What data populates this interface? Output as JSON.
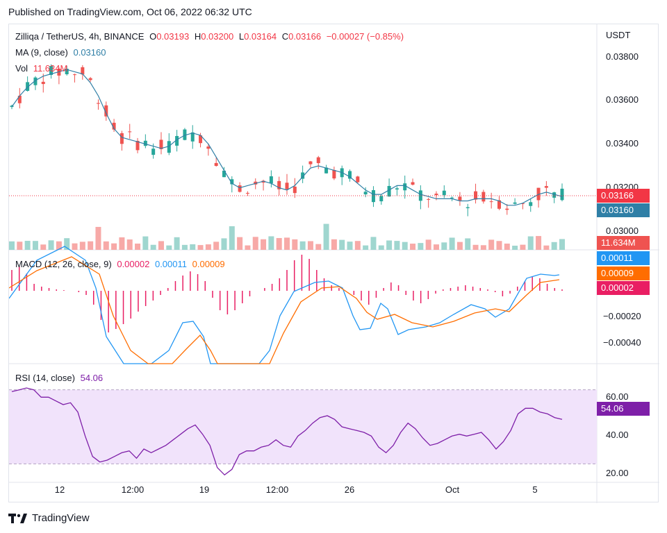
{
  "header": {
    "published": "Published on TradingView.com, Oct 06, 2022 06:32 UTC"
  },
  "legend": {
    "symbol": "Zilliqa / TetherUS, 4h, BINANCE",
    "o_label": "O",
    "o_value": "0.03193",
    "h_label": "H",
    "h_value": "0.03200",
    "l_label": "L",
    "l_value": "0.03164",
    "c_label": "C",
    "c_value": "0.03166",
    "change": "−0.00027 (−0.85%)",
    "ma_label": "MA (9, close)",
    "ma_value": "0.03160",
    "vol_label": "Vol",
    "vol_value": "11.634M",
    "macd_label": "MACD (12, 26, close, 9)",
    "macd_hist": "0.00002",
    "macd_line": "0.00011",
    "macd_signal": "0.00009",
    "rsi_label": "RSI (14, close)",
    "rsi_value": "54.06"
  },
  "price_axis": {
    "currency": "USDT",
    "ticks": [
      "0.03800",
      "0.03600",
      "0.03400",
      "0.03200",
      "0.03000"
    ],
    "tag_close": "0.03166",
    "tag_ma": "0.03160",
    "tag_vol": "11.634M"
  },
  "macd_axis": {
    "ticks": [
      "−0.00020",
      "−0.00040"
    ],
    "tag_macd": "0.00011",
    "tag_signal": "0.00009",
    "tag_hist": "0.00002"
  },
  "rsi_axis": {
    "ticks": [
      "60.00",
      "40.00",
      "20.00"
    ],
    "tag_rsi": "54.06"
  },
  "time_axis": {
    "ticks": [
      "12",
      "12:00",
      "19",
      "12:00",
      "26",
      "Oct",
      "5"
    ]
  },
  "footer": {
    "brand": "TradingView"
  },
  "colors": {
    "up": "#26a69a",
    "down": "#ef5350",
    "ma": "#2f7fa6",
    "macd": "#2196f3",
    "signal": "#ff6d00",
    "hist": "#e91e63",
    "rsi": "#7e1fa8",
    "rsi_band": "#f1e3fb"
  },
  "chart_data": {
    "type": "candlestick",
    "price_range": [
      0.0298,
      0.0382
    ],
    "ma_close_series": [
      0.0357,
      0.0362,
      0.0366,
      0.0369,
      0.0371,
      0.0372,
      0.0373,
      0.0374,
      0.0373,
      0.0372,
      0.0368,
      0.0362,
      0.0354,
      0.0347,
      0.0343,
      0.0342,
      0.0341,
      0.034,
      0.0339,
      0.0338,
      0.0339,
      0.0342,
      0.0344,
      0.0345,
      0.0344,
      0.034,
      0.0334,
      0.0328,
      0.0322,
      0.032,
      0.0321,
      0.0322,
      0.0323,
      0.0322,
      0.032,
      0.0319,
      0.0321,
      0.0325,
      0.0329,
      0.033,
      0.0329,
      0.0328,
      0.0327,
      0.0325,
      0.0322,
      0.0319,
      0.0317,
      0.0317,
      0.0319,
      0.0321,
      0.0321,
      0.0319,
      0.0317,
      0.0316,
      0.0315,
      0.0315,
      0.0315,
      0.0314,
      0.0314,
      0.0315,
      0.0315,
      0.0315,
      0.0314,
      0.0312,
      0.0312,
      0.0313,
      0.0315,
      0.0317,
      0.0318,
      0.0317,
      0.0316
    ],
    "rsi_series": [
      69,
      70,
      71,
      70,
      66,
      66,
      64,
      62,
      63,
      58,
      45,
      34,
      31,
      32,
      34,
      36,
      37,
      33,
      38,
      36,
      38,
      40,
      43,
      46,
      49,
      51,
      46,
      40,
      28,
      24,
      27,
      35,
      37,
      37,
      39,
      40,
      43,
      40,
      39,
      45,
      48,
      52,
      55,
      56,
      54,
      50,
      49,
      48,
      47,
      45,
      39,
      36,
      40,
      47,
      52,
      49,
      44,
      40,
      41,
      43,
      45,
      46,
      45,
      46,
      47,
      43,
      38,
      42,
      48,
      57,
      60,
      60,
      58,
      57,
      55,
      54
    ],
    "macd_line_range": [
      -0.0005,
      0.0002
    ],
    "rsi_range": [
      20,
      80
    ]
  }
}
